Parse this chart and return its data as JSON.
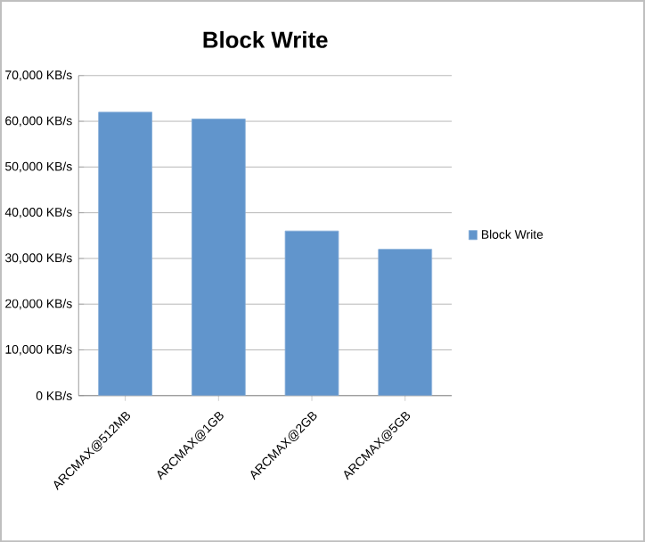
{
  "chart_data": {
    "type": "bar",
    "title": "Block Write",
    "categories": [
      "ARCMAX@512MB",
      "ARCMAX@1GB",
      "ARCMAX@2GB",
      "ARCMAX@5GB"
    ],
    "series": [
      {
        "name": "Block Write",
        "color": "#6195cc",
        "values": [
          62000,
          60500,
          36000,
          32000
        ]
      }
    ],
    "ylim": [
      0,
      70000
    ],
    "yticks": [
      {
        "value": 0,
        "label": "0 KB/s"
      },
      {
        "value": 10000,
        "label": "10,000 KB/s"
      },
      {
        "value": 20000,
        "label": "20,000 KB/s"
      },
      {
        "value": 30000,
        "label": "30,000 KB/s"
      },
      {
        "value": 40000,
        "label": "40,000 KB/s"
      },
      {
        "value": 50000,
        "label": "50,000 KB/s"
      },
      {
        "value": 60000,
        "label": "60,000 KB/s"
      },
      {
        "value": 70000,
        "label": "70,000 KB/s"
      }
    ],
    "grid": "y",
    "legend": "right"
  }
}
